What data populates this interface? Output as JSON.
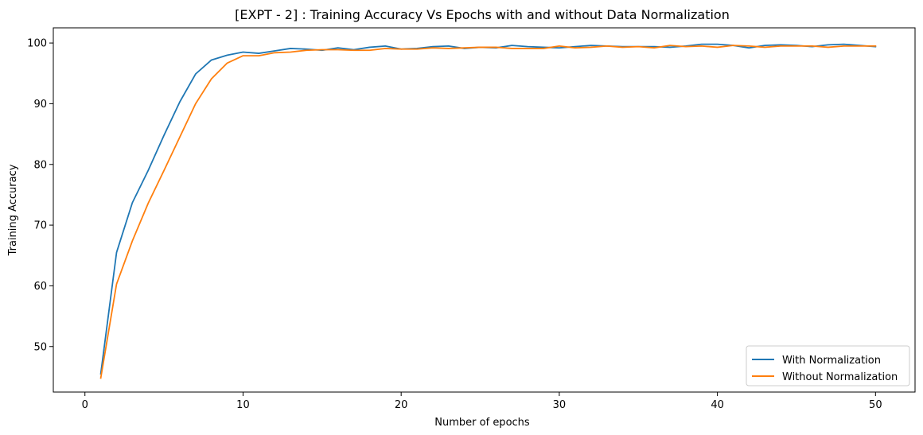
{
  "chart_data": {
    "type": "line",
    "title": "[EXPT - 2] : Training Accuracy Vs Epochs with and without Data Normalization",
    "xlabel": "Number of epochs",
    "ylabel": "Training Accuracy",
    "xlim": [
      -2,
      52.5
    ],
    "ylim": [
      42.5,
      102.5
    ],
    "xticks": [
      0,
      10,
      20,
      30,
      40,
      50
    ],
    "yticks": [
      50,
      60,
      70,
      80,
      90,
      100
    ],
    "grid": false,
    "legend_position": "lower-right",
    "x": [
      1,
      2,
      3,
      4,
      5,
      6,
      7,
      8,
      9,
      10,
      11,
      12,
      13,
      14,
      15,
      16,
      17,
      18,
      19,
      20,
      21,
      22,
      23,
      24,
      25,
      26,
      27,
      28,
      29,
      30,
      31,
      32,
      33,
      34,
      35,
      36,
      37,
      38,
      39,
      40,
      41,
      42,
      43,
      44,
      45,
      46,
      47,
      48,
      49,
      50
    ],
    "series": [
      {
        "name": "With Normalization",
        "color": "#1f77b4",
        "values": [
          45.5,
          65.5,
          73.7,
          79.0,
          84.8,
          90.3,
          94.9,
          97.2,
          98.0,
          98.5,
          98.3,
          98.7,
          99.1,
          99.0,
          98.8,
          99.2,
          98.9,
          99.3,
          99.5,
          99.0,
          99.1,
          99.4,
          99.5,
          99.1,
          99.3,
          99.2,
          99.6,
          99.4,
          99.3,
          99.2,
          99.4,
          99.6,
          99.5,
          99.4,
          99.4,
          99.4,
          99.3,
          99.5,
          99.8,
          99.8,
          99.6,
          99.2,
          99.6,
          99.7,
          99.6,
          99.4,
          99.7,
          99.8,
          99.6,
          99.4
        ]
      },
      {
        "name": "Without Normalization",
        "color": "#ff7f0e",
        "values": [
          44.8,
          60.3,
          67.4,
          73.6,
          79.0,
          84.5,
          90.0,
          94.1,
          96.7,
          97.9,
          97.9,
          98.4,
          98.5,
          98.8,
          98.9,
          98.9,
          98.8,
          98.8,
          99.1,
          99.0,
          99.0,
          99.2,
          99.1,
          99.2,
          99.3,
          99.3,
          99.1,
          99.1,
          99.1,
          99.5,
          99.2,
          99.3,
          99.5,
          99.3,
          99.4,
          99.2,
          99.6,
          99.4,
          99.5,
          99.3,
          99.6,
          99.5,
          99.3,
          99.5,
          99.5,
          99.5,
          99.3,
          99.5,
          99.5,
          99.5
        ]
      }
    ]
  }
}
